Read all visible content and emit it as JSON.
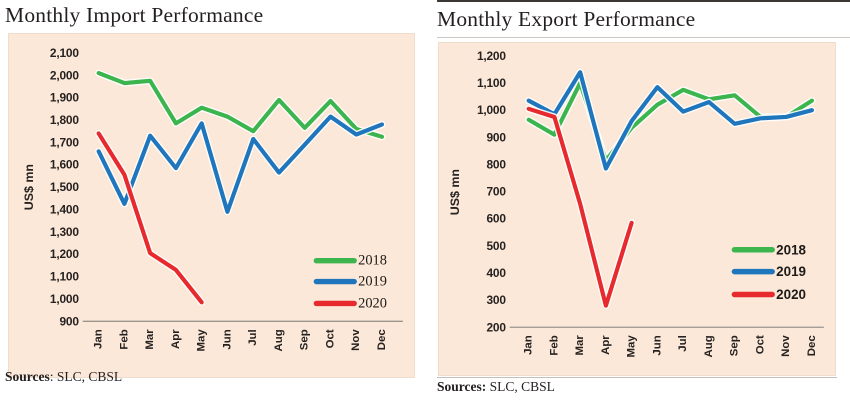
{
  "chart_data": [
    {
      "type": "line",
      "title": "Monthly Import Performance",
      "ylabel": "US$ mn",
      "categories": [
        "Jan",
        "Feb",
        "Mar",
        "Apr",
        "May",
        "Jun",
        "Jul",
        "Aug",
        "Sep",
        "Oct",
        "Nov",
        "Dec"
      ],
      "series": [
        {
          "name": "2018",
          "color": "#3cb54e",
          "values": [
            2010,
            1965,
            1975,
            1785,
            1855,
            1815,
            1750,
            1890,
            1765,
            1885,
            1760,
            1725
          ]
        },
        {
          "name": "2019",
          "color": "#1f76bc",
          "values": [
            1660,
            1425,
            1730,
            1585,
            1785,
            1390,
            1715,
            1565,
            1690,
            1815,
            1735,
            1780
          ]
        },
        {
          "name": "2020",
          "color": "#e62a2e",
          "values": [
            1740,
            1555,
            1205,
            1130,
            985
          ]
        }
      ],
      "ylim": [
        900,
        2100
      ],
      "ytick_step": 100,
      "grid": false,
      "legend_position": "inside-lower-right",
      "source_bold": "Sources",
      "source_rest": ": SLC, CBSL"
    },
    {
      "type": "line",
      "title": "Monthly Export Performance",
      "ylabel": "US$ mn",
      "categories": [
        "Jan",
        "Feb",
        "Mar",
        "Apr",
        "May",
        "Jun",
        "Jul",
        "Aug",
        "Sep",
        "Oct",
        "Nov",
        "Dec"
      ],
      "series": [
        {
          "name": "2018",
          "color": "#3cb54e",
          "values": [
            965,
            910,
            1100,
            815,
            935,
            1020,
            1075,
            1040,
            1055,
            975,
            975,
            1035
          ]
        },
        {
          "name": "2019",
          "color": "#1f76bc",
          "values": [
            1035,
            985,
            1140,
            785,
            960,
            1085,
            995,
            1030,
            950,
            970,
            975,
            1000
          ]
        },
        {
          "name": "2020",
          "color": "#e62a2e",
          "values": [
            1005,
            975,
            655,
            280,
            585
          ]
        }
      ],
      "ylim": [
        200,
        1200
      ],
      "ytick_step": 100,
      "grid": false,
      "legend_position": "inside-lower-right",
      "source_bold": "Sources:",
      "source_rest": " SLC, CBSL"
    }
  ],
  "colors": {
    "panel_background": "#fbe8d8",
    "axis_line": "#9b958e",
    "text": "#262221",
    "series": {
      "2018": "#3cb54e",
      "2019": "#1f76bc",
      "2020": "#e62a2e"
    }
  }
}
